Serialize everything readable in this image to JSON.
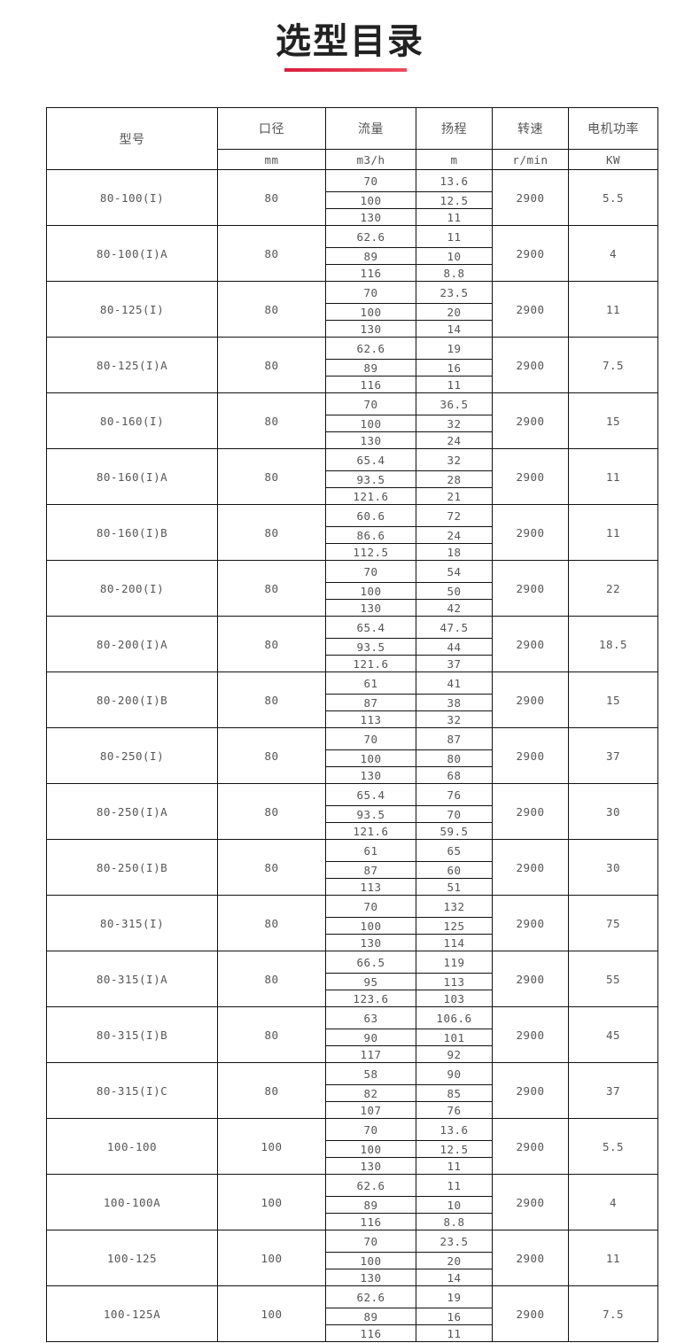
{
  "title": "选型目录",
  "accent_color": "#e02a45",
  "headers": [
    "型号",
    "口径",
    "流量",
    "扬程",
    "转速",
    "电机功率"
  ],
  "units": [
    "mm",
    "m3/h",
    "m",
    "r/min",
    "KW"
  ],
  "rows": [
    {
      "model": "80-100(I)",
      "dn": "80",
      "flow": [
        "70",
        "100",
        "130"
      ],
      "head": [
        "13.6",
        "12.5",
        "11"
      ],
      "speed": "2900",
      "power": "5.5"
    },
    {
      "model": "80-100(I)A",
      "dn": "80",
      "flow": [
        "62.6",
        "89",
        "116"
      ],
      "head": [
        "11",
        "10",
        "8.8"
      ],
      "speed": "2900",
      "power": "4"
    },
    {
      "model": "80-125(I)",
      "dn": "80",
      "flow": [
        "70",
        "100",
        "130"
      ],
      "head": [
        "23.5",
        "20",
        "14"
      ],
      "speed": "2900",
      "power": "11"
    },
    {
      "model": "80-125(I)A",
      "dn": "80",
      "flow": [
        "62.6",
        "89",
        "116"
      ],
      "head": [
        "19",
        "16",
        "11"
      ],
      "speed": "2900",
      "power": "7.5"
    },
    {
      "model": "80-160(I)",
      "dn": "80",
      "flow": [
        "70",
        "100",
        "130"
      ],
      "head": [
        "36.5",
        "32",
        "24"
      ],
      "speed": "2900",
      "power": "15"
    },
    {
      "model": "80-160(I)A",
      "dn": "80",
      "flow": [
        "65.4",
        "93.5",
        "121.6"
      ],
      "head": [
        "32",
        "28",
        "21"
      ],
      "speed": "2900",
      "power": "11"
    },
    {
      "model": "80-160(I)B",
      "dn": "80",
      "flow": [
        "60.6",
        "86.6",
        "112.5"
      ],
      "head": [
        "72",
        "24",
        "18"
      ],
      "speed": "2900",
      "power": "11"
    },
    {
      "model": "80-200(I)",
      "dn": "80",
      "flow": [
        "70",
        "100",
        "130"
      ],
      "head": [
        "54",
        "50",
        "42"
      ],
      "speed": "2900",
      "power": "22"
    },
    {
      "model": "80-200(I)A",
      "dn": "80",
      "flow": [
        "65.4",
        "93.5",
        "121.6"
      ],
      "head": [
        "47.5",
        "44",
        "37"
      ],
      "speed": "2900",
      "power": "18.5"
    },
    {
      "model": "80-200(I)B",
      "dn": "80",
      "flow": [
        "61",
        "87",
        "113"
      ],
      "head": [
        "41",
        "38",
        "32"
      ],
      "speed": "2900",
      "power": "15"
    },
    {
      "model": "80-250(I)",
      "dn": "80",
      "flow": [
        "70",
        "100",
        "130"
      ],
      "head": [
        "87",
        "80",
        "68"
      ],
      "speed": "2900",
      "power": "37"
    },
    {
      "model": "80-250(I)A",
      "dn": "80",
      "flow": [
        "65.4",
        "93.5",
        "121.6"
      ],
      "head": [
        "76",
        "70",
        "59.5"
      ],
      "speed": "2900",
      "power": "30"
    },
    {
      "model": "80-250(I)B",
      "dn": "80",
      "flow": [
        "61",
        "87",
        "113"
      ],
      "head": [
        "65",
        "60",
        "51"
      ],
      "speed": "2900",
      "power": "30"
    },
    {
      "model": "80-315(I)",
      "dn": "80",
      "flow": [
        "70",
        "100",
        "130"
      ],
      "head": [
        "132",
        "125",
        "114"
      ],
      "speed": "2900",
      "power": "75"
    },
    {
      "model": "80-315(I)A",
      "dn": "80",
      "flow": [
        "66.5",
        "95",
        "123.6"
      ],
      "head": [
        "119",
        "113",
        "103"
      ],
      "speed": "2900",
      "power": "55"
    },
    {
      "model": "80-315(I)B",
      "dn": "80",
      "flow": [
        "63",
        "90",
        "117"
      ],
      "head": [
        "106.6",
        "101",
        "92"
      ],
      "speed": "2900",
      "power": "45"
    },
    {
      "model": "80-315(I)C",
      "dn": "80",
      "flow": [
        "58",
        "82",
        "107"
      ],
      "head": [
        "90",
        "85",
        "76"
      ],
      "speed": "2900",
      "power": "37"
    },
    {
      "model": "100-100",
      "dn": "100",
      "flow": [
        "70",
        "100",
        "130"
      ],
      "head": [
        "13.6",
        "12.5",
        "11"
      ],
      "speed": "2900",
      "power": "5.5"
    },
    {
      "model": "100-100A",
      "dn": "100",
      "flow": [
        "62.6",
        "89",
        "116"
      ],
      "head": [
        "11",
        "10",
        "8.8"
      ],
      "speed": "2900",
      "power": "4"
    },
    {
      "model": "100-125",
      "dn": "100",
      "flow": [
        "70",
        "100",
        "130"
      ],
      "head": [
        "23.5",
        "20",
        "14"
      ],
      "speed": "2900",
      "power": "11"
    },
    {
      "model": "100-125A",
      "dn": "100",
      "flow": [
        "62.6",
        "89",
        "116"
      ],
      "head": [
        "19",
        "16",
        "11"
      ],
      "speed": "2900",
      "power": "7.5"
    }
  ]
}
